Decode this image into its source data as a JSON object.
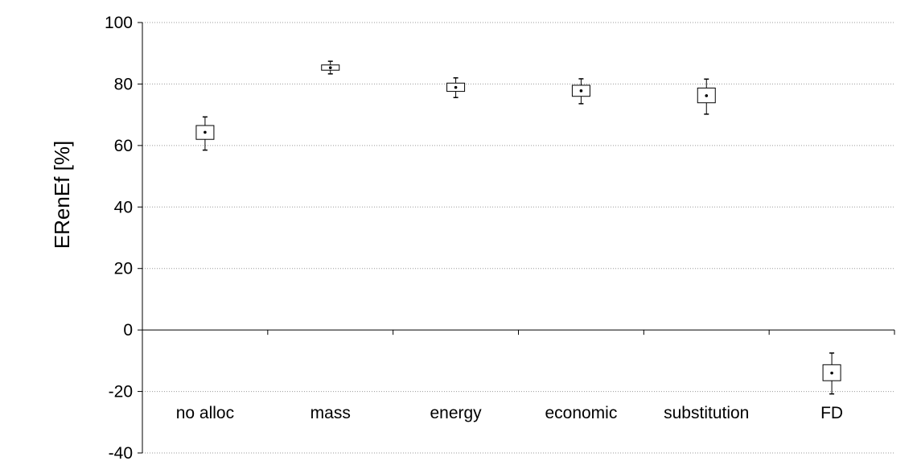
{
  "chart_data": {
    "type": "box",
    "ylabel": "ERenEf [%]",
    "xlabel": "",
    "title": "",
    "ylim": [
      -40,
      100
    ],
    "yticks": [
      -40,
      -20,
      0,
      20,
      40,
      60,
      80,
      100
    ],
    "grid": "horizontal dotted",
    "categories": [
      "no alloc",
      "mass",
      "energy",
      "economic",
      "substitution",
      "FD"
    ],
    "boxes": [
      {
        "category": "no alloc",
        "min": 58.5,
        "q1": 62.0,
        "median": 64.3,
        "q3": 66.5,
        "max": 69.3
      },
      {
        "category": "mass",
        "min": 83.3,
        "q1": 84.5,
        "median": 85.3,
        "q3": 86.2,
        "max": 87.4
      },
      {
        "category": "energy",
        "min": 75.6,
        "q1": 77.6,
        "median": 78.9,
        "q3": 80.3,
        "max": 82.0
      },
      {
        "category": "economic",
        "min": 73.6,
        "q1": 76.0,
        "median": 77.8,
        "q3": 79.6,
        "max": 81.7
      },
      {
        "category": "substitution",
        "min": 70.2,
        "q1": 73.9,
        "median": 76.2,
        "q3": 78.7,
        "max": 81.6
      },
      {
        "category": "FD",
        "min": -20.8,
        "q1": -16.5,
        "median": -14.0,
        "q3": -11.3,
        "max": -7.5
      }
    ]
  }
}
